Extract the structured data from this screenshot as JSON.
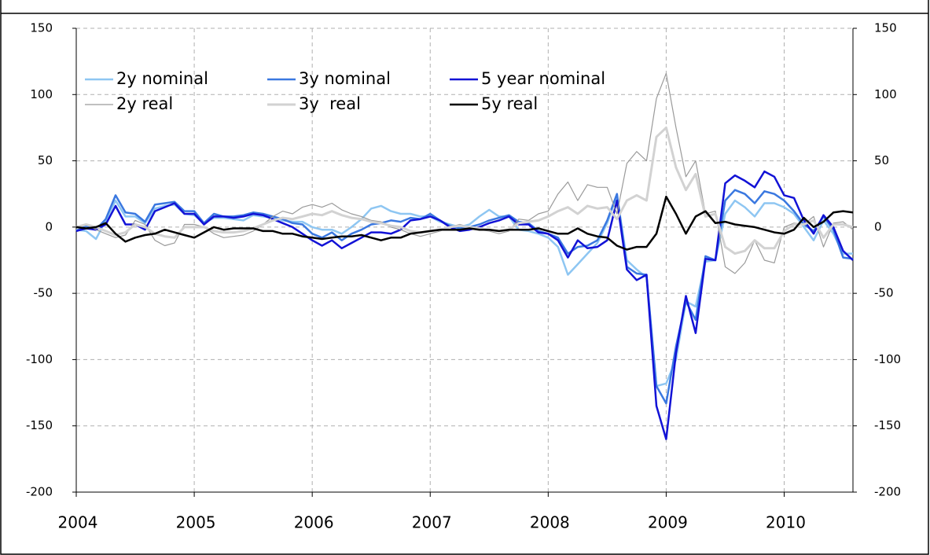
{
  "chart_data": {
    "type": "line",
    "x": [
      2004,
      2004.083,
      2004.167,
      2004.25,
      2004.333,
      2004.417,
      2004.5,
      2004.583,
      2004.667,
      2004.75,
      2004.833,
      2004.917,
      2005,
      2005.083,
      2005.167,
      2005.25,
      2005.333,
      2005.417,
      2005.5,
      2005.583,
      2005.667,
      2005.75,
      2005.833,
      2005.917,
      2006,
      2006.083,
      2006.167,
      2006.25,
      2006.333,
      2006.417,
      2006.5,
      2006.583,
      2006.667,
      2006.75,
      2006.833,
      2006.917,
      2007,
      2007.083,
      2007.167,
      2007.25,
      2007.333,
      2007.417,
      2007.5,
      2007.583,
      2007.667,
      2007.75,
      2007.833,
      2007.917,
      2008,
      2008.083,
      2008.167,
      2008.25,
      2008.333,
      2008.417,
      2008.5,
      2008.583,
      2008.667,
      2008.75,
      2008.833,
      2008.917,
      2009,
      2009.083,
      2009.167,
      2009.25,
      2009.333,
      2009.417,
      2009.5,
      2009.583,
      2009.667,
      2009.75,
      2009.833,
      2009.917,
      2010,
      2010.083,
      2010.167,
      2010.25,
      2010.333,
      2010.417,
      2010.5,
      2010.583
    ],
    "xlim": [
      2004,
      2010.583
    ],
    "xticks": [
      2004,
      2005,
      2006,
      2007,
      2008,
      2009,
      2010
    ],
    "ylim": [
      -200,
      150
    ],
    "yticks": [
      -200,
      -150,
      -100,
      -50,
      0,
      50,
      100,
      150
    ],
    "y2lim": [
      -200,
      150
    ],
    "y2ticks": [
      -200,
      -150,
      -100,
      -50,
      0,
      50,
      100,
      150
    ],
    "grid": true,
    "series": [
      {
        "name": "2y nominal",
        "color": "#8ec6f2",
        "width": 2.5,
        "values": [
          -2,
          -3,
          -9,
          5,
          20,
          8,
          8,
          3,
          14,
          16,
          17,
          10,
          9,
          3,
          7,
          7,
          6,
          5,
          9,
          8,
          7,
          5,
          4,
          4,
          0,
          -2,
          -2,
          -5,
          0,
          6,
          14,
          16,
          12,
          10,
          10,
          8,
          8,
          4,
          2,
          0,
          2,
          8,
          13,
          8,
          8,
          -2,
          -3,
          -5,
          -8,
          -15,
          -36,
          -28,
          -20,
          -12,
          3,
          24,
          -25,
          -32,
          -38,
          -120,
          -118,
          -100,
          -56,
          -60,
          -26,
          -25,
          10,
          20,
          15,
          8,
          18,
          18,
          15,
          10,
          0,
          -10,
          5,
          -5,
          -20,
          -20
        ]
      },
      {
        "name": "3y nominal",
        "color": "#3a78e0",
        "width": 2.5,
        "values": [
          -3,
          1,
          -2,
          6,
          24,
          11,
          10,
          4,
          17,
          18,
          19,
          12,
          12,
          3,
          10,
          8,
          8,
          9,
          11,
          10,
          8,
          6,
          3,
          2,
          -5,
          -8,
          -4,
          -10,
          -5,
          -2,
          2,
          3,
          5,
          4,
          7,
          6,
          10,
          5,
          1,
          -1,
          0,
          2,
          5,
          7,
          9,
          4,
          3,
          -3,
          -5,
          -8,
          -20,
          -15,
          -14,
          -10,
          5,
          25,
          -30,
          -35,
          -36,
          -120,
          -133,
          -90,
          -56,
          -70,
          -22,
          -25,
          20,
          28,
          25,
          18,
          27,
          25,
          20,
          12,
          2,
          -3,
          8,
          -2,
          -23,
          -24
        ]
      },
      {
        "name": "5 year nominal",
        "color": "#1212d6",
        "width": 2.5,
        "values": [
          -3,
          -1,
          -2,
          2,
          16,
          2,
          2,
          -2,
          12,
          15,
          18,
          10,
          10,
          2,
          8,
          8,
          7,
          8,
          10,
          9,
          6,
          3,
          0,
          -5,
          -10,
          -14,
          -10,
          -16,
          -12,
          -8,
          -4,
          -4,
          -5,
          -2,
          5,
          6,
          8,
          5,
          0,
          -3,
          -2,
          0,
          3,
          5,
          8,
          2,
          2,
          -4,
          -5,
          -10,
          -23,
          -10,
          -16,
          -15,
          -10,
          20,
          -32,
          -40,
          -36,
          -135,
          -160,
          -95,
          -52,
          -80,
          -24,
          -25,
          33,
          39,
          35,
          30,
          42,
          38,
          24,
          22,
          5,
          -5,
          9,
          0,
          -18,
          -25
        ]
      },
      {
        "name": "2y real",
        "color": "#9a9a9a",
        "width": 1.2,
        "values": [
          0,
          2,
          -2,
          -5,
          -8,
          -6,
          5,
          2,
          -10,
          -14,
          -12,
          2,
          2,
          0,
          -5,
          -8,
          -7,
          -6,
          -3,
          2,
          8,
          12,
          10,
          15,
          17,
          15,
          18,
          13,
          10,
          8,
          5,
          4,
          0,
          -2,
          -5,
          -7,
          -5,
          -3,
          0,
          2,
          0,
          -2,
          -3,
          -5,
          -3,
          6,
          5,
          10,
          12,
          25,
          34,
          20,
          32,
          30,
          30,
          10,
          48,
          57,
          50,
          97,
          116,
          75,
          38,
          50,
          10,
          12,
          -30,
          -35,
          -27,
          -10,
          -25,
          -27,
          0,
          3,
          2,
          8,
          -15,
          3,
          4,
          -2
        ]
      },
      {
        "name": "3y  real",
        "color": "#d2d2d2",
        "width": 3,
        "values": [
          0,
          2,
          0,
          -3,
          -6,
          -4,
          2,
          0,
          -5,
          -7,
          -8,
          0,
          0,
          0,
          -3,
          -4,
          -4,
          -3,
          -1,
          2,
          5,
          7,
          6,
          8,
          10,
          9,
          12,
          9,
          7,
          6,
          4,
          3,
          1,
          0,
          -3,
          -4,
          -3,
          -2,
          0,
          1,
          0,
          -1,
          -2,
          -3,
          -2,
          3,
          4,
          5,
          8,
          12,
          15,
          10,
          16,
          14,
          15,
          6,
          20,
          24,
          20,
          68,
          75,
          45,
          28,
          40,
          8,
          10,
          -15,
          -20,
          -18,
          -10,
          -16,
          -16,
          -3,
          2,
          2,
          5,
          -8,
          2,
          2,
          0
        ]
      },
      {
        "name": "5y real",
        "color": "#000000",
        "width": 2.5,
        "values": [
          0,
          -1,
          0,
          3,
          -5,
          -11,
          -8,
          -6,
          -5,
          -2,
          -4,
          -6,
          -8,
          -4,
          0,
          -2,
          -1,
          -1,
          -1,
          -3,
          -3,
          -5,
          -5,
          -7,
          -8,
          -9,
          -8,
          -7,
          -7,
          -6,
          -8,
          -10,
          -8,
          -8,
          -5,
          -4,
          -3,
          -2,
          -2,
          -2,
          -1,
          -2,
          -2,
          -3,
          -2,
          -2,
          -2,
          -1,
          -3,
          -5,
          -5,
          -1,
          -5,
          -7,
          -8,
          -14,
          -17,
          -15,
          -15,
          -5,
          23,
          10,
          -5,
          8,
          12,
          3,
          4,
          2,
          1,
          0,
          -2,
          -4,
          -5,
          -2,
          7,
          0,
          4,
          11,
          12,
          11
        ]
      }
    ]
  }
}
